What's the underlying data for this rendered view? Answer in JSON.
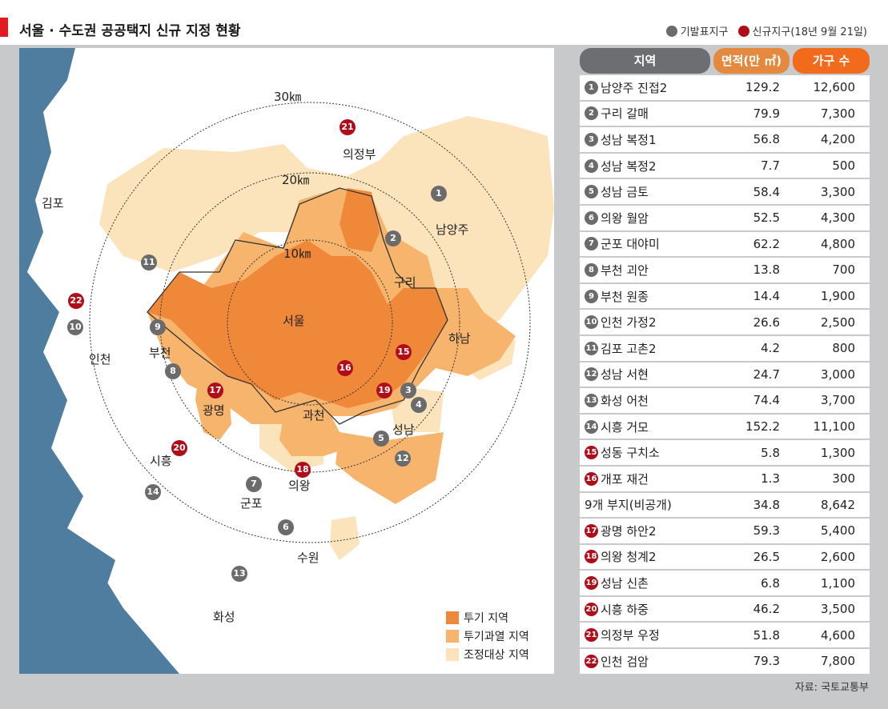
{
  "header": {
    "title": "서울 · 수도권 공공택지 신규 지정 현황",
    "legend_existing": "기발표지구",
    "legend_new": "신규지구(18년 9월 21일)"
  },
  "map": {
    "rings": [
      "30㎞",
      "20㎞",
      "10㎞"
    ],
    "places": {
      "gimpo": "김포",
      "uijeongbu": "의정부",
      "namyangju": "남양주",
      "guri": "구리",
      "seoul": "서울",
      "incheon": "인천",
      "bucheon": "부천",
      "hanam": "하남",
      "gwangmyeong": "광명",
      "gwacheon": "과천",
      "seongnam": "성남",
      "siheung": "시흥",
      "uiwang": "의왕",
      "gunpo": "군포",
      "suwon": "수원",
      "hwaseong": "화성"
    },
    "markers": [
      {
        "n": "1",
        "kind": "grey"
      },
      {
        "n": "2",
        "kind": "grey"
      },
      {
        "n": "3",
        "kind": "grey"
      },
      {
        "n": "4",
        "kind": "grey"
      },
      {
        "n": "5",
        "kind": "grey"
      },
      {
        "n": "6",
        "kind": "grey"
      },
      {
        "n": "7",
        "kind": "grey"
      },
      {
        "n": "8",
        "kind": "grey"
      },
      {
        "n": "9",
        "kind": "grey"
      },
      {
        "n": "10",
        "kind": "grey"
      },
      {
        "n": "11",
        "kind": "grey"
      },
      {
        "n": "12",
        "kind": "grey"
      },
      {
        "n": "13",
        "kind": "grey"
      },
      {
        "n": "14",
        "kind": "grey"
      },
      {
        "n": "15",
        "kind": "red"
      },
      {
        "n": "16",
        "kind": "red"
      },
      {
        "n": "17",
        "kind": "red"
      },
      {
        "n": "18",
        "kind": "red"
      },
      {
        "n": "19",
        "kind": "red"
      },
      {
        "n": "20",
        "kind": "red"
      },
      {
        "n": "21",
        "kind": "red"
      },
      {
        "n": "22",
        "kind": "red"
      }
    ],
    "legend": [
      {
        "label": "투기 지역",
        "color": "#f0883a"
      },
      {
        "label": "투기과열 지역",
        "color": "#f6b46c"
      },
      {
        "label": "조정대상 지역",
        "color": "#fbe4bb"
      }
    ]
  },
  "table": {
    "headers": {
      "region": "지역",
      "area": "면적(만 ㎡)",
      "households": "가구 수"
    },
    "rows": [
      {
        "n": "1",
        "kind": "grey",
        "name": "남양주 진접2",
        "area": "129.2",
        "hh": "12,600"
      },
      {
        "n": "2",
        "kind": "grey",
        "name": "구리 갈매",
        "area": "79.9",
        "hh": "7,300"
      },
      {
        "n": "3",
        "kind": "grey",
        "name": "성남 복정1",
        "area": "56.8",
        "hh": "4,200"
      },
      {
        "n": "4",
        "kind": "grey",
        "name": "성남 복정2",
        "area": "7.7",
        "hh": "500"
      },
      {
        "n": "5",
        "kind": "grey",
        "name": "성남 금토",
        "area": "58.4",
        "hh": "3,300"
      },
      {
        "n": "6",
        "kind": "grey",
        "name": "의왕 월암",
        "area": "52.5",
        "hh": "4,300"
      },
      {
        "n": "7",
        "kind": "grey",
        "name": "군포 대야미",
        "area": "62.2",
        "hh": "4,800"
      },
      {
        "n": "8",
        "kind": "grey",
        "name": "부천 괴안",
        "area": "13.8",
        "hh": "700"
      },
      {
        "n": "9",
        "kind": "grey",
        "name": "부천 원종",
        "area": "14.4",
        "hh": "1,900"
      },
      {
        "n": "10",
        "kind": "grey",
        "name": "인천 가정2",
        "area": "26.6",
        "hh": "2,500"
      },
      {
        "n": "11",
        "kind": "grey",
        "name": "김포 고촌2",
        "area": "4.2",
        "hh": "800"
      },
      {
        "n": "12",
        "kind": "grey",
        "name": "성남 서현",
        "area": "24.7",
        "hh": "3,000"
      },
      {
        "n": "13",
        "kind": "grey",
        "name": "화성 어천",
        "area": "74.4",
        "hh": "3,700"
      },
      {
        "n": "14",
        "kind": "grey",
        "name": "시흥 거모",
        "area": "152.2",
        "hh": "11,100"
      },
      {
        "n": "15",
        "kind": "red",
        "name": "성동 구치소",
        "area": "5.8",
        "hh": "1,300"
      },
      {
        "n": "16",
        "kind": "red",
        "name": "개포 재건",
        "area": "1.3",
        "hh": "300"
      },
      {
        "n": "",
        "kind": "none",
        "name": "9개 부지(비공개)",
        "area": "34.8",
        "hh": "8,642"
      },
      {
        "n": "17",
        "kind": "red",
        "name": "광명 하안2",
        "area": "59.3",
        "hh": "5,400"
      },
      {
        "n": "18",
        "kind": "red",
        "name": "의왕 청계2",
        "area": "26.5",
        "hh": "2,600"
      },
      {
        "n": "19",
        "kind": "red",
        "name": "성남 신촌",
        "area": "6.8",
        "hh": "1,100"
      },
      {
        "n": "20",
        "kind": "red",
        "name": "시흥 하중",
        "area": "46.2",
        "hh": "3,500"
      },
      {
        "n": "21",
        "kind": "red",
        "name": "의정부 우정",
        "area": "51.8",
        "hh": "4,600"
      },
      {
        "n": "22",
        "kind": "red",
        "name": "인천 검암",
        "area": "79.3",
        "hh": "7,800"
      }
    ]
  },
  "source": "자료: 국토교통부"
}
